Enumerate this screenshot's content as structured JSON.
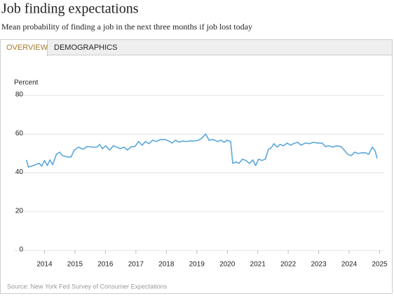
{
  "header": {
    "title": "Job finding expectations",
    "subtitle": "Mean probability of finding a job in the next three months if job lost today"
  },
  "tabs": [
    "OVERVIEW",
    "DEMOGRAPHICS"
  ],
  "chart_data": {
    "type": "line",
    "y_label": "Percent",
    "color": "#5aa7dc",
    "x": [
      2013.41,
      2013.47,
      2013.63,
      2013.82,
      2013.91,
      2014.0,
      2014.09,
      2014.18,
      2014.27,
      2014.39,
      2014.5,
      2014.59,
      2014.76,
      2014.87,
      2014.98,
      2015.12,
      2015.26,
      2015.4,
      2015.56,
      2015.72,
      2015.81,
      2015.9,
      2016.01,
      2016.14,
      2016.26,
      2016.37,
      2016.49,
      2016.61,
      2016.72,
      2016.86,
      2016.97,
      2017.09,
      2017.2,
      2017.32,
      2017.43,
      2017.55,
      2017.66,
      2017.8,
      2017.96,
      2018.07,
      2018.19,
      2018.3,
      2018.42,
      2018.53,
      2018.65,
      2018.78,
      2018.92,
      2019.06,
      2019.17,
      2019.29,
      2019.4,
      2019.54,
      2019.68,
      2019.79,
      2019.9,
      2019.99,
      2020.11,
      2020.18,
      2020.29,
      2020.38,
      2020.5,
      2020.61,
      2020.73,
      2020.84,
      2020.93,
      2021.03,
      2021.14,
      2021.25,
      2021.35,
      2021.44,
      2021.53,
      2021.64,
      2021.73,
      2021.85,
      2021.96,
      2022.08,
      2022.17,
      2022.31,
      2022.42,
      2022.56,
      2022.7,
      2022.83,
      2022.97,
      2023.11,
      2023.22,
      2023.34,
      2023.45,
      2023.59,
      2023.73,
      2023.84,
      2023.95,
      2024.07,
      2024.18,
      2024.3,
      2024.41,
      2024.53,
      2024.64,
      2024.76,
      2024.85,
      2024.92
    ],
    "values": [
      46.7,
      43.0,
      43.8,
      45.0,
      43.5,
      46.4,
      43.8,
      46.7,
      44.2,
      49.6,
      50.7,
      48.9,
      48.2,
      48.2,
      51.8,
      53.3,
      52.2,
      53.6,
      53.3,
      53.3,
      54.7,
      52.5,
      54.0,
      51.8,
      54.0,
      53.3,
      52.5,
      53.3,
      51.8,
      53.6,
      53.6,
      56.2,
      54.3,
      56.2,
      55.1,
      56.9,
      56.2,
      57.2,
      57.2,
      56.5,
      55.4,
      56.9,
      55.8,
      56.5,
      56.2,
      56.5,
      56.5,
      56.9,
      58.0,
      60.1,
      56.9,
      57.2,
      56.2,
      56.9,
      55.8,
      56.9,
      56.2,
      44.9,
      45.7,
      44.9,
      47.1,
      46.4,
      44.9,
      46.7,
      43.8,
      47.1,
      46.4,
      47.1,
      52.2,
      52.9,
      55.1,
      53.3,
      54.7,
      54.0,
      55.4,
      54.3,
      55.1,
      55.8,
      54.3,
      55.4,
      55.1,
      55.8,
      55.4,
      55.4,
      53.6,
      54.0,
      53.3,
      54.0,
      53.6,
      51.8,
      49.6,
      48.9,
      50.7,
      50.0,
      50.4,
      50.4,
      49.6,
      53.3,
      51.5,
      47.5
    ],
    "xlim": [
      2013,
      2025.15
    ],
    "xticks": [
      2014,
      2015,
      2016,
      2017,
      2018,
      2019,
      2020,
      2021,
      2022,
      2023,
      2024,
      2025
    ],
    "ylim": [
      0,
      80
    ],
    "yticks": [
      0,
      20,
      40,
      60,
      80
    ],
    "grid": true
  },
  "source": "Source: New York Fed Survey of Consumer Expectations"
}
